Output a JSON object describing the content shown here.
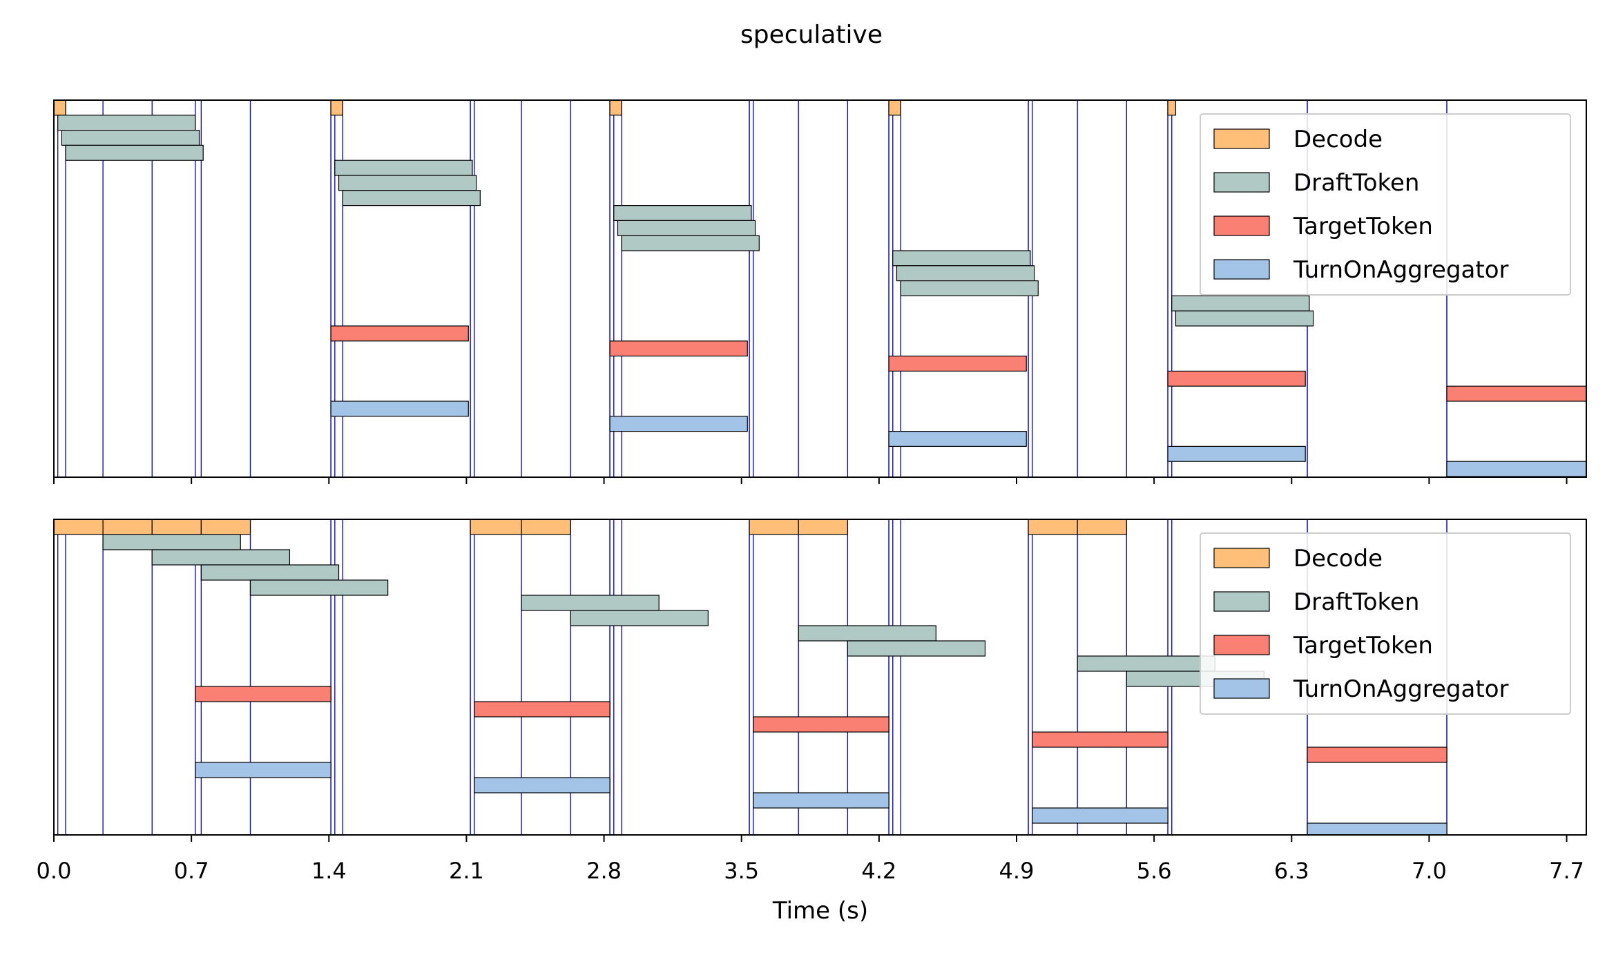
{
  "chart_data": {
    "type": "gantt",
    "title": "speculative",
    "xlabel": "Time (s)",
    "xlim": [
      0.0,
      7.8
    ],
    "xticks": [
      "0.0",
      "0.7",
      "1.4",
      "2.1",
      "2.8",
      "3.5",
      "4.2",
      "4.9",
      "5.6",
      "6.3",
      "7.0",
      "7.7"
    ],
    "legend": {
      "placement": "upper-right",
      "entries": [
        {
          "name": "Decode",
          "color": "#FFBF78"
        },
        {
          "name": "DraftToken",
          "color": "#B0C9C4"
        },
        {
          "name": "TargetToken",
          "color": "#F98072"
        },
        {
          "name": "TurnOnAggregator",
          "color": "#A3C4E7"
        }
      ]
    },
    "panels": [
      {
        "gray_lines": [
          1.41,
          2.12,
          2.83,
          3.54,
          4.25,
          4.96,
          5.67,
          6.38,
          7.09
        ],
        "blue_lines": [
          0.0,
          0.02,
          0.06,
          0.25,
          0.5,
          0.72,
          0.75,
          1.0,
          1.41,
          1.43,
          1.47,
          2.12,
          2.14,
          2.38,
          2.63,
          2.83,
          2.85,
          2.89,
          3.54,
          3.56,
          3.79,
          4.04,
          4.25,
          4.27,
          4.31,
          4.96,
          4.98,
          5.21,
          5.46,
          5.67,
          5.69,
          6.38,
          7.09
        ],
        "bars": [
          {
            "label": "Decode",
            "start": 0.0,
            "end": 0.06,
            "row": 0
          },
          {
            "label": "DraftToken",
            "start": 0.02,
            "end": 0.72,
            "row": 1
          },
          {
            "label": "DraftToken",
            "start": 0.04,
            "end": 0.74,
            "row": 2
          },
          {
            "label": "DraftToken",
            "start": 0.06,
            "end": 0.76,
            "row": 3
          },
          {
            "label": "Decode",
            "start": 1.41,
            "end": 1.47,
            "row": 0
          },
          {
            "label": "DraftToken",
            "start": 1.43,
            "end": 2.13,
            "row": 4
          },
          {
            "label": "DraftToken",
            "start": 1.45,
            "end": 2.15,
            "row": 5
          },
          {
            "label": "DraftToken",
            "start": 1.47,
            "end": 2.17,
            "row": 6
          },
          {
            "label": "TargetToken",
            "start": 1.41,
            "end": 2.11,
            "row": 15
          },
          {
            "label": "TurnOnAggregator",
            "start": 1.41,
            "end": 2.11,
            "row": 20
          },
          {
            "label": "Decode",
            "start": 2.83,
            "end": 2.89,
            "row": 0
          },
          {
            "label": "DraftToken",
            "start": 2.85,
            "end": 3.55,
            "row": 7
          },
          {
            "label": "DraftToken",
            "start": 2.87,
            "end": 3.57,
            "row": 8
          },
          {
            "label": "DraftToken",
            "start": 2.89,
            "end": 3.59,
            "row": 9
          },
          {
            "label": "TargetToken",
            "start": 2.83,
            "end": 3.53,
            "row": 16
          },
          {
            "label": "TurnOnAggregator",
            "start": 2.83,
            "end": 3.53,
            "row": 21
          },
          {
            "label": "Decode",
            "start": 4.25,
            "end": 4.31,
            "row": 0
          },
          {
            "label": "DraftToken",
            "start": 4.27,
            "end": 4.97,
            "row": 10
          },
          {
            "label": "DraftToken",
            "start": 4.29,
            "end": 4.99,
            "row": 11
          },
          {
            "label": "DraftToken",
            "start": 4.31,
            "end": 5.01,
            "row": 12
          },
          {
            "label": "TargetToken",
            "start": 4.25,
            "end": 4.95,
            "row": 17
          },
          {
            "label": "TurnOnAggregator",
            "start": 4.25,
            "end": 4.95,
            "row": 22
          },
          {
            "label": "Decode",
            "start": 5.67,
            "end": 5.71,
            "row": 0
          },
          {
            "label": "DraftToken",
            "start": 5.69,
            "end": 6.39,
            "row": 13
          },
          {
            "label": "DraftToken",
            "start": 5.71,
            "end": 6.41,
            "row": 14
          },
          {
            "label": "TargetToken",
            "start": 5.67,
            "end": 6.37,
            "row": 18
          },
          {
            "label": "TurnOnAggregator",
            "start": 5.67,
            "end": 6.37,
            "row": 23
          },
          {
            "label": "TargetToken",
            "start": 7.09,
            "end": 7.8,
            "row": 19
          },
          {
            "label": "TurnOnAggregator",
            "start": 7.09,
            "end": 7.8,
            "row": 24
          }
        ]
      },
      {
        "gray_lines": [
          1.41,
          2.12,
          2.83,
          3.54,
          4.25,
          4.96,
          5.67,
          6.38,
          7.09
        ],
        "blue_lines": [
          0.0,
          0.02,
          0.06,
          0.25,
          0.5,
          0.72,
          0.75,
          1.0,
          1.41,
          1.43,
          1.47,
          2.12,
          2.14,
          2.38,
          2.63,
          2.83,
          2.85,
          2.89,
          3.54,
          3.56,
          3.79,
          4.04,
          4.25,
          4.27,
          4.31,
          4.96,
          4.98,
          5.21,
          5.46,
          5.67,
          5.69,
          6.38,
          7.09
        ],
        "bars": [
          {
            "label": "Decode",
            "start": 0.0,
            "end": 0.25,
            "row": 0
          },
          {
            "label": "Decode",
            "start": 0.25,
            "end": 0.5,
            "row": 0
          },
          {
            "label": "Decode",
            "start": 0.5,
            "end": 0.75,
            "row": 0
          },
          {
            "label": "Decode",
            "start": 0.75,
            "end": 1.0,
            "row": 0
          },
          {
            "label": "DraftToken",
            "start": 0.25,
            "end": 0.95,
            "row": 1
          },
          {
            "label": "DraftToken",
            "start": 0.5,
            "end": 1.2,
            "row": 2
          },
          {
            "label": "DraftToken",
            "start": 0.75,
            "end": 1.45,
            "row": 3
          },
          {
            "label": "DraftToken",
            "start": 1.0,
            "end": 1.7,
            "row": 4
          },
          {
            "label": "TargetToken",
            "start": 0.72,
            "end": 1.41,
            "row": 11
          },
          {
            "label": "TurnOnAggregator",
            "start": 0.72,
            "end": 1.41,
            "row": 16
          },
          {
            "label": "Decode",
            "start": 2.12,
            "end": 2.38,
            "row": 0
          },
          {
            "label": "Decode",
            "start": 2.38,
            "end": 2.63,
            "row": 0
          },
          {
            "label": "DraftToken",
            "start": 2.38,
            "end": 3.08,
            "row": 5
          },
          {
            "label": "DraftToken",
            "start": 2.63,
            "end": 3.33,
            "row": 6
          },
          {
            "label": "TargetToken",
            "start": 2.14,
            "end": 2.83,
            "row": 12
          },
          {
            "label": "TurnOnAggregator",
            "start": 2.14,
            "end": 2.83,
            "row": 17
          },
          {
            "label": "Decode",
            "start": 3.54,
            "end": 3.79,
            "row": 0
          },
          {
            "label": "Decode",
            "start": 3.79,
            "end": 4.04,
            "row": 0
          },
          {
            "label": "DraftToken",
            "start": 3.79,
            "end": 4.49,
            "row": 7
          },
          {
            "label": "DraftToken",
            "start": 4.04,
            "end": 4.74,
            "row": 8
          },
          {
            "label": "TargetToken",
            "start": 3.56,
            "end": 4.25,
            "row": 13
          },
          {
            "label": "TurnOnAggregator",
            "start": 3.56,
            "end": 4.25,
            "row": 18
          },
          {
            "label": "Decode",
            "start": 4.96,
            "end": 5.21,
            "row": 0
          },
          {
            "label": "Decode",
            "start": 5.21,
            "end": 5.46,
            "row": 0
          },
          {
            "label": "DraftToken",
            "start": 5.21,
            "end": 5.91,
            "row": 9
          },
          {
            "label": "DraftToken",
            "start": 5.46,
            "end": 6.16,
            "row": 10
          },
          {
            "label": "TargetToken",
            "start": 4.98,
            "end": 5.67,
            "row": 14
          },
          {
            "label": "TurnOnAggregator",
            "start": 4.98,
            "end": 5.67,
            "row": 19
          },
          {
            "label": "TargetToken",
            "start": 6.38,
            "end": 7.09,
            "row": 15
          },
          {
            "label": "TurnOnAggregator",
            "start": 6.38,
            "end": 7.09,
            "row": 20
          }
        ]
      }
    ]
  }
}
